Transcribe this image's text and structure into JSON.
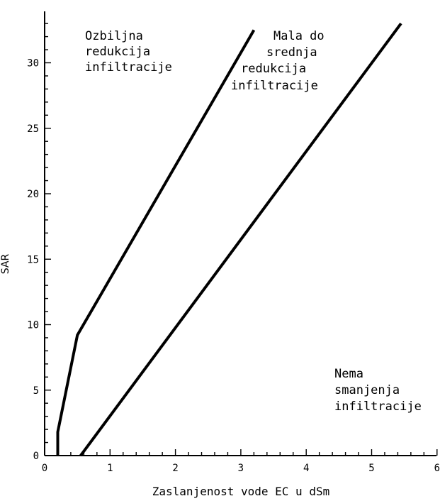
{
  "chart_data": {
    "type": "line",
    "title": "",
    "xlabel": "Zaslanjenost vode EC u dSm",
    "ylabel": "SAR",
    "xlim": [
      0,
      6
    ],
    "ylim": [
      0,
      33
    ],
    "xticks": [
      0,
      1,
      2,
      3,
      4,
      5,
      6
    ],
    "yticks": [
      0,
      5,
      10,
      15,
      20,
      25,
      30
    ],
    "xtick_labels": [
      "0",
      "1",
      "2",
      "3",
      "4",
      "5",
      "6"
    ],
    "ytick_labels": [
      "0",
      "5",
      "10",
      "15",
      "20",
      "25",
      "30"
    ],
    "grid": false,
    "series": [
      {
        "points": [
          [
            0.2,
            0
          ],
          [
            0.2,
            1.8
          ],
          [
            0.5,
            9.2
          ],
          [
            3.2,
            32.5
          ]
        ]
      },
      {
        "points": [
          [
            0.55,
            0
          ],
          [
            5.45,
            33
          ]
        ]
      }
    ],
    "regions": [
      {
        "lines": [
          "Ozbiljna",
          "redukcija",
          "infiltracije"
        ]
      },
      {
        "lines": [
          "Mala do",
          "srednja",
          "redukcija",
          "infiltracije"
        ]
      },
      {
        "lines": [
          "Nema",
          "smanjenja",
          "infiltracije"
        ]
      }
    ]
  }
}
